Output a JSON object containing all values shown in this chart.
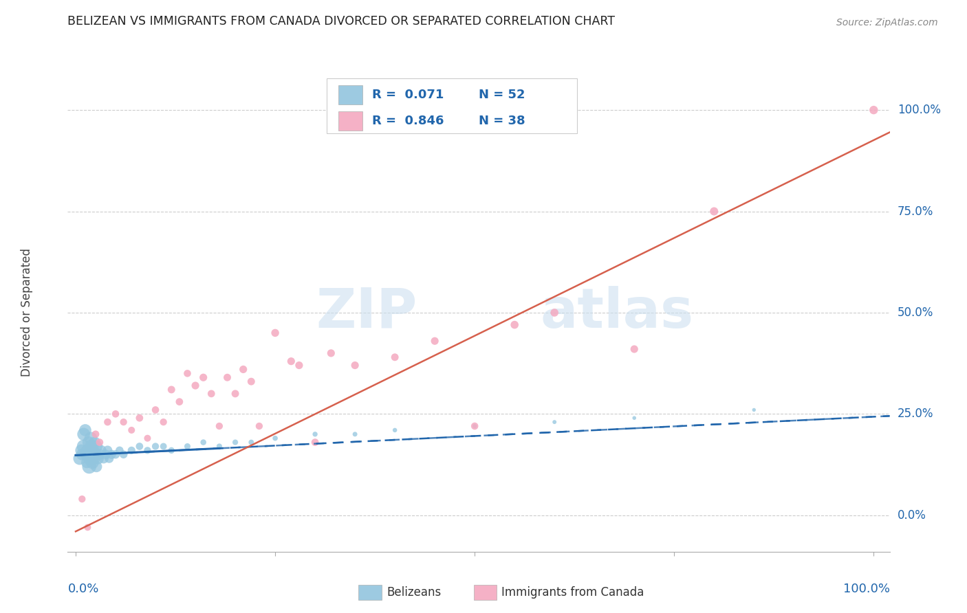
{
  "title": "BELIZEAN VS IMMIGRANTS FROM CANADA DIVORCED OR SEPARATED CORRELATION CHART",
  "source": "Source: ZipAtlas.com",
  "ylabel": "Divorced or Separated",
  "ytick_labels": [
    "0.0%",
    "25.0%",
    "50.0%",
    "75.0%",
    "100.0%"
  ],
  "ytick_values": [
    0.0,
    0.25,
    0.5,
    0.75,
    1.0
  ],
  "xlim": [
    -0.01,
    1.02
  ],
  "ylim": [
    -0.09,
    1.09
  ],
  "legend_r1": "0.071",
  "legend_n1": "52",
  "legend_r2": "0.846",
  "legend_n2": "38",
  "color_blue": "#92c5de",
  "color_pink": "#f4a9c0",
  "color_blue_dark": "#2166ac",
  "color_pink_dark": "#d6604d",
  "color_text_blue": "#2166ac",
  "watermark_zip": "ZIP",
  "watermark_atlas": "atlas",
  "background_color": "#ffffff",
  "blue_scatter_x": [
    0.005,
    0.007,
    0.008,
    0.01,
    0.01,
    0.012,
    0.013,
    0.014,
    0.015,
    0.016,
    0.017,
    0.018,
    0.019,
    0.02,
    0.02,
    0.021,
    0.022,
    0.023,
    0.024,
    0.025,
    0.026,
    0.027,
    0.028,
    0.03,
    0.032,
    0.035,
    0.038,
    0.04,
    0.042,
    0.045,
    0.05,
    0.055,
    0.06,
    0.07,
    0.08,
    0.09,
    0.1,
    0.11,
    0.12,
    0.14,
    0.16,
    0.18,
    0.2,
    0.22,
    0.25,
    0.3,
    0.35,
    0.4,
    0.5,
    0.6,
    0.7,
    0.85
  ],
  "blue_scatter_y": [
    0.14,
    0.16,
    0.15,
    0.17,
    0.2,
    0.21,
    0.15,
    0.13,
    0.16,
    0.18,
    0.12,
    0.14,
    0.19,
    0.15,
    0.17,
    0.13,
    0.16,
    0.14,
    0.18,
    0.15,
    0.12,
    0.17,
    0.14,
    0.15,
    0.16,
    0.14,
    0.15,
    0.16,
    0.14,
    0.15,
    0.15,
    0.16,
    0.15,
    0.16,
    0.17,
    0.16,
    0.17,
    0.17,
    0.16,
    0.17,
    0.18,
    0.17,
    0.18,
    0.18,
    0.19,
    0.2,
    0.2,
    0.21,
    0.22,
    0.23,
    0.24,
    0.26
  ],
  "blue_scatter_sizes": [
    180,
    160,
    150,
    200,
    180,
    160,
    150,
    140,
    180,
    160,
    220,
    200,
    180,
    220,
    200,
    180,
    160,
    150,
    140,
    160,
    140,
    130,
    150,
    130,
    120,
    110,
    100,
    100,
    90,
    90,
    80,
    70,
    70,
    65,
    60,
    55,
    55,
    50,
    45,
    42,
    38,
    35,
    35,
    32,
    30,
    28,
    25,
    22,
    20,
    18,
    16,
    15
  ],
  "pink_scatter_x": [
    0.008,
    0.015,
    0.025,
    0.03,
    0.04,
    0.05,
    0.06,
    0.07,
    0.08,
    0.09,
    0.1,
    0.11,
    0.12,
    0.13,
    0.14,
    0.15,
    0.16,
    0.17,
    0.18,
    0.19,
    0.2,
    0.21,
    0.22,
    0.23,
    0.25,
    0.27,
    0.28,
    0.3,
    0.32,
    0.35,
    0.4,
    0.45,
    0.5,
    0.55,
    0.6,
    0.7,
    0.8,
    1.0
  ],
  "pink_scatter_y": [
    0.04,
    -0.03,
    0.2,
    0.18,
    0.23,
    0.25,
    0.23,
    0.21,
    0.24,
    0.19,
    0.26,
    0.23,
    0.31,
    0.28,
    0.35,
    0.32,
    0.34,
    0.3,
    0.22,
    0.34,
    0.3,
    0.36,
    0.33,
    0.22,
    0.45,
    0.38,
    0.37,
    0.18,
    0.4,
    0.37,
    0.39,
    0.43,
    0.22,
    0.47,
    0.5,
    0.41,
    0.75,
    1.0
  ],
  "pink_scatter_sizes": [
    55,
    50,
    60,
    60,
    58,
    58,
    55,
    52,
    60,
    52,
    58,
    55,
    62,
    60,
    58,
    65,
    65,
    60,
    55,
    62,
    62,
    65,
    62,
    55,
    68,
    65,
    65,
    60,
    65,
    65,
    62,
    65,
    58,
    70,
    70,
    65,
    75,
    80
  ],
  "blue_trend_x": [
    0.0,
    1.02
  ],
  "blue_trend_y": [
    0.148,
    0.245
  ],
  "pink_trend_x": [
    0.0,
    1.02
  ],
  "pink_trend_y": [
    -0.04,
    0.945
  ]
}
